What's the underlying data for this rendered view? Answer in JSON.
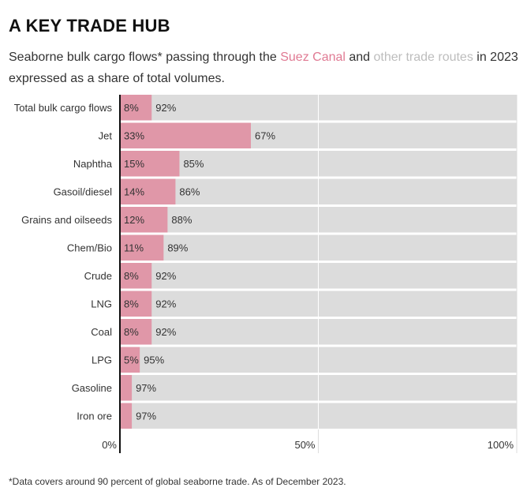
{
  "header": {
    "title": "A KEY TRADE HUB",
    "subtitle_part1": "Seaborne bulk cargo flows* passing through the ",
    "suez_label": "Suez Canal",
    "subtitle_and": " and ",
    "other_label": "other trade routes",
    "subtitle_part2": " in 2023 expressed as a share of total volumes."
  },
  "colors": {
    "suez": "#e097a8",
    "other": "#dcdcdc",
    "axis": "#111111",
    "grid": "#ffffff"
  },
  "chart_data": {
    "type": "bar",
    "orientation": "horizontal",
    "stacked": true,
    "categories": [
      "Total bulk cargo flows",
      "Jet",
      "Naphtha",
      "Gasoil/diesel",
      "Grains and oilseeds",
      "Chem/Bio",
      "Crude",
      "LNG",
      "Coal",
      "LPG",
      "Gasoline",
      "Iron ore"
    ],
    "series": [
      {
        "name": "Suez Canal",
        "values": [
          8,
          33,
          15,
          14,
          12,
          11,
          8,
          8,
          8,
          5,
          3,
          3
        ],
        "labels": [
          "8%",
          "33%",
          "15%",
          "14%",
          "12%",
          "11%",
          "8%",
          "8%",
          "8%",
          "5%",
          "",
          ""
        ]
      },
      {
        "name": "other trade routes",
        "values": [
          92,
          67,
          85,
          86,
          88,
          89,
          92,
          92,
          92,
          95,
          97,
          97
        ],
        "labels": [
          "92%",
          "67%",
          "85%",
          "86%",
          "88%",
          "89%",
          "92%",
          "92%",
          "92%",
          "95%",
          "97%",
          "97%"
        ]
      }
    ],
    "xlim": [
      0,
      100
    ],
    "ticks": [
      {
        "value": 0,
        "label": "0%"
      },
      {
        "value": 50,
        "label": "50%"
      },
      {
        "value": 100,
        "label": "100%"
      }
    ]
  },
  "footnote": "*Data covers around 90 percent of global seaborne trade. As of December 2023."
}
